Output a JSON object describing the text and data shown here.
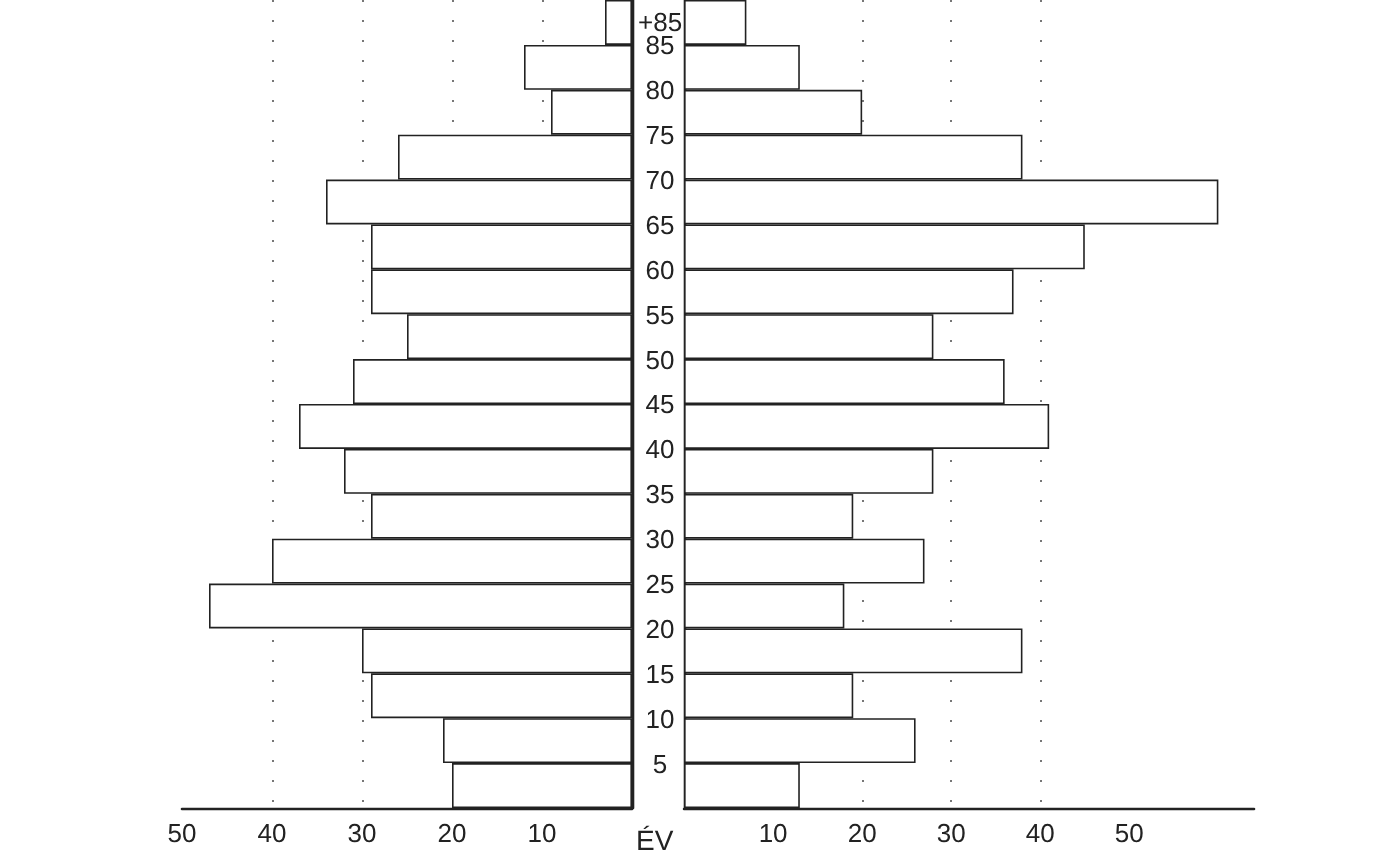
{
  "chart_data": [
    {
      "type": "bar",
      "orientation": "horizontal",
      "categories": [
        "+85",
        "85",
        "80",
        "75",
        "70",
        "65",
        "60",
        "55",
        "50",
        "45",
        "40",
        "35",
        "30",
        "25",
        "20",
        "15",
        "10",
        "5"
      ],
      "series": [
        {
          "color": "#ffffff",
          "values": [
            3,
            12,
            9,
            26,
            34,
            29,
            29,
            25,
            31,
            37,
            32,
            29,
            40,
            47,
            30,
            29,
            21,
            20
          ]
        }
      ],
      "xlim": [
        50,
        0
      ],
      "xticks": [
        50,
        40,
        30,
        20,
        10
      ],
      "grid": "x",
      "tick_labels": "x"
    },
    {
      "type": "bar",
      "orientation": "horizontal",
      "categories": [
        "+85",
        "85",
        "80",
        "75",
        "70",
        "65",
        "60",
        "55",
        "50",
        "45",
        "40",
        "35",
        "30",
        "25",
        "20",
        "15",
        "10",
        "5"
      ],
      "series": [
        {
          "color": "#ffffff",
          "values": [
            7,
            13,
            20,
            38,
            60,
            45,
            37,
            28,
            36,
            41,
            28,
            19,
            27,
            18,
            38,
            19,
            26,
            13
          ]
        }
      ],
      "xlim": [
        0,
        64
      ],
      "xticks": [
        10,
        20,
        30,
        40,
        50
      ],
      "grid": "x",
      "ylabel": "ÉV"
    }
  ]
}
